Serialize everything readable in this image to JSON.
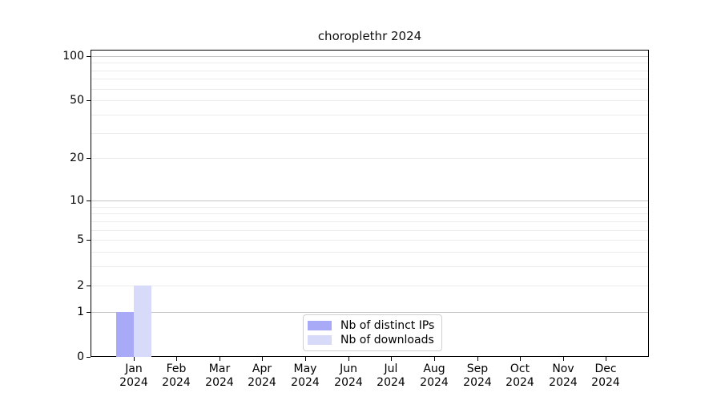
{
  "chart_data": {
    "type": "bar",
    "title": "choroplethr 2024",
    "x_year": "2024",
    "categories": [
      "Jan",
      "Feb",
      "Mar",
      "Apr",
      "May",
      "Jun",
      "Jul",
      "Aug",
      "Sep",
      "Oct",
      "Nov",
      "Dec"
    ],
    "series": [
      {
        "name": "Nb of distinct IPs",
        "color": "#a8aaf8",
        "values": [
          1,
          0,
          0,
          0,
          0,
          0,
          0,
          0,
          0,
          0,
          0,
          0
        ]
      },
      {
        "name": "Nb of downloads",
        "color": "#d8dafa",
        "values": [
          2,
          0,
          0,
          0,
          0,
          0,
          0,
          0,
          0,
          0,
          0,
          0
        ]
      }
    ],
    "y_axis": {
      "scale": "log1p",
      "labeled_ticks": [
        0,
        1,
        2,
        5,
        10,
        20,
        50,
        100
      ],
      "major_grid": [
        1,
        10,
        100
      ],
      "minor_grid": [
        2,
        3,
        4,
        5,
        6,
        7,
        8,
        9,
        20,
        30,
        40,
        50,
        60,
        70,
        80,
        90
      ],
      "ylim": [
        0,
        110
      ]
    },
    "legend": {
      "position": "lower center"
    },
    "grid": true
  },
  "colors": {
    "major_grid": "#c3c3c3",
    "minor_grid": "#ececec",
    "spine": "#000000",
    "text": "#000000",
    "legend_border": "#d0d0d0"
  }
}
